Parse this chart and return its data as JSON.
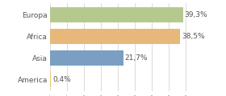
{
  "categories": [
    "Europa",
    "Africa",
    "Asia",
    "America"
  ],
  "values": [
    39.3,
    38.5,
    21.7,
    0.4
  ],
  "labels": [
    "39,3%",
    "38,5%",
    "21,7%",
    "0,4%"
  ],
  "bar_colors": [
    "#b5c98e",
    "#e8b87a",
    "#7a9fc2",
    "#e8c86a"
  ],
  "xlim": [
    0,
    44
  ],
  "label_fontsize": 6.5,
  "tick_fontsize": 6.5,
  "background_color": "#ffffff",
  "bar_height": 0.72,
  "grid_color": "#cccccc"
}
